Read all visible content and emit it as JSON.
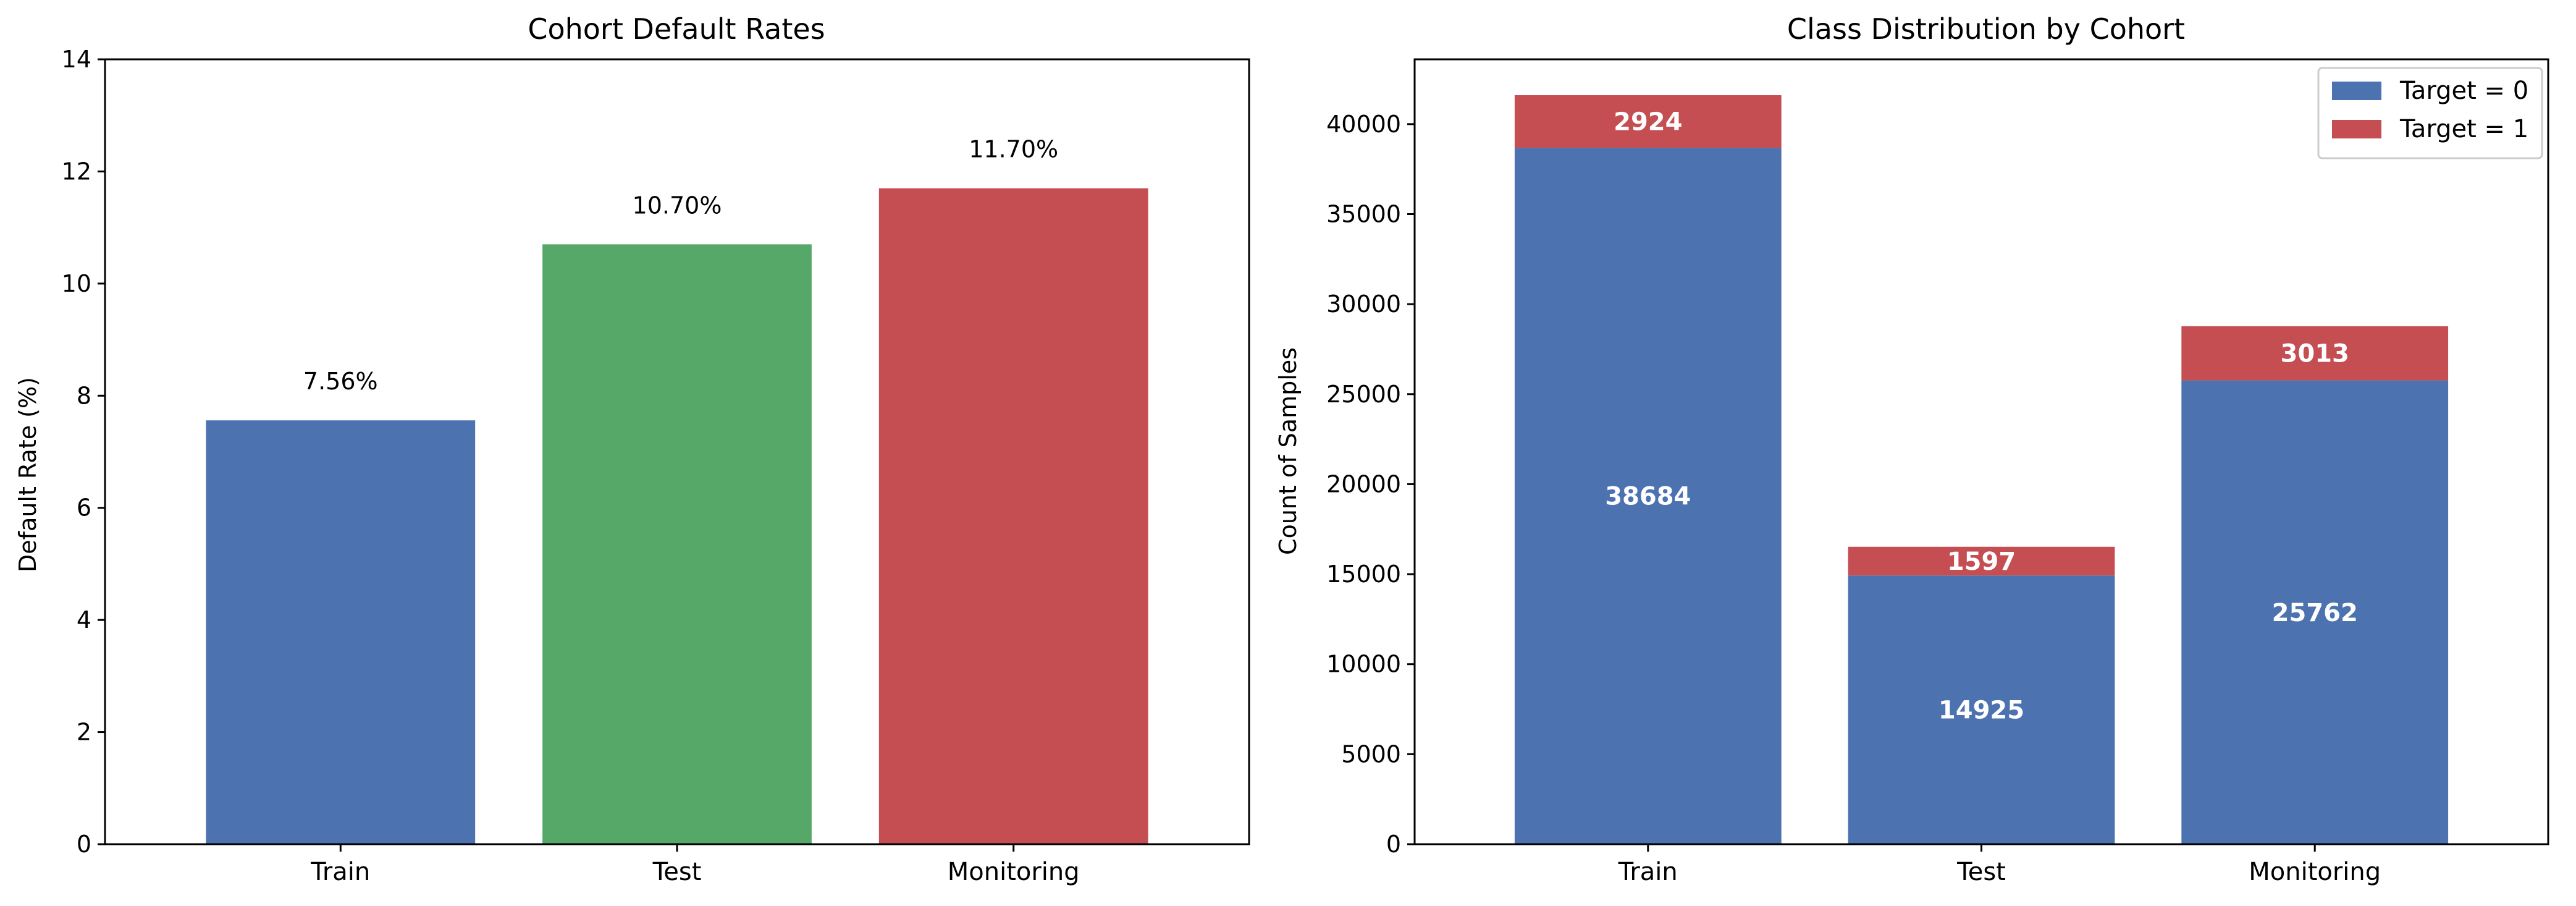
{
  "chart_data": [
    {
      "type": "bar",
      "title": "Cohort Default Rates",
      "xlabel": "",
      "ylabel": "Default Rate (%)",
      "categories": [
        "Train",
        "Test",
        "Monitoring"
      ],
      "values": [
        7.56,
        10.7,
        11.7
      ],
      "data_labels": [
        "7.56%",
        "10.70%",
        "11.70%"
      ],
      "colors": [
        "#4c72b0",
        "#55a868",
        "#c44e52"
      ],
      "ylim": [
        0,
        14
      ],
      "yticks": [
        0,
        2,
        4,
        6,
        8,
        10,
        12,
        14
      ],
      "grid": false,
      "legend": "none"
    },
    {
      "type": "bar",
      "stacked": true,
      "title": "Class Distribution by Cohort",
      "xlabel": "",
      "ylabel": "Count of Samples",
      "categories": [
        "Train",
        "Test",
        "Monitoring"
      ],
      "series": [
        {
          "name": "Target = 0",
          "values": [
            38684,
            14925,
            25762
          ],
          "color": "#4c72b0"
        },
        {
          "name": "Target = 1",
          "values": [
            2924,
            1597,
            3013
          ],
          "color": "#c44e52"
        }
      ],
      "ylim": [
        0,
        43600
      ],
      "yticks": [
        0,
        5000,
        10000,
        15000,
        20000,
        25000,
        30000,
        35000,
        40000
      ],
      "grid": false,
      "legend": "top-right"
    }
  ]
}
